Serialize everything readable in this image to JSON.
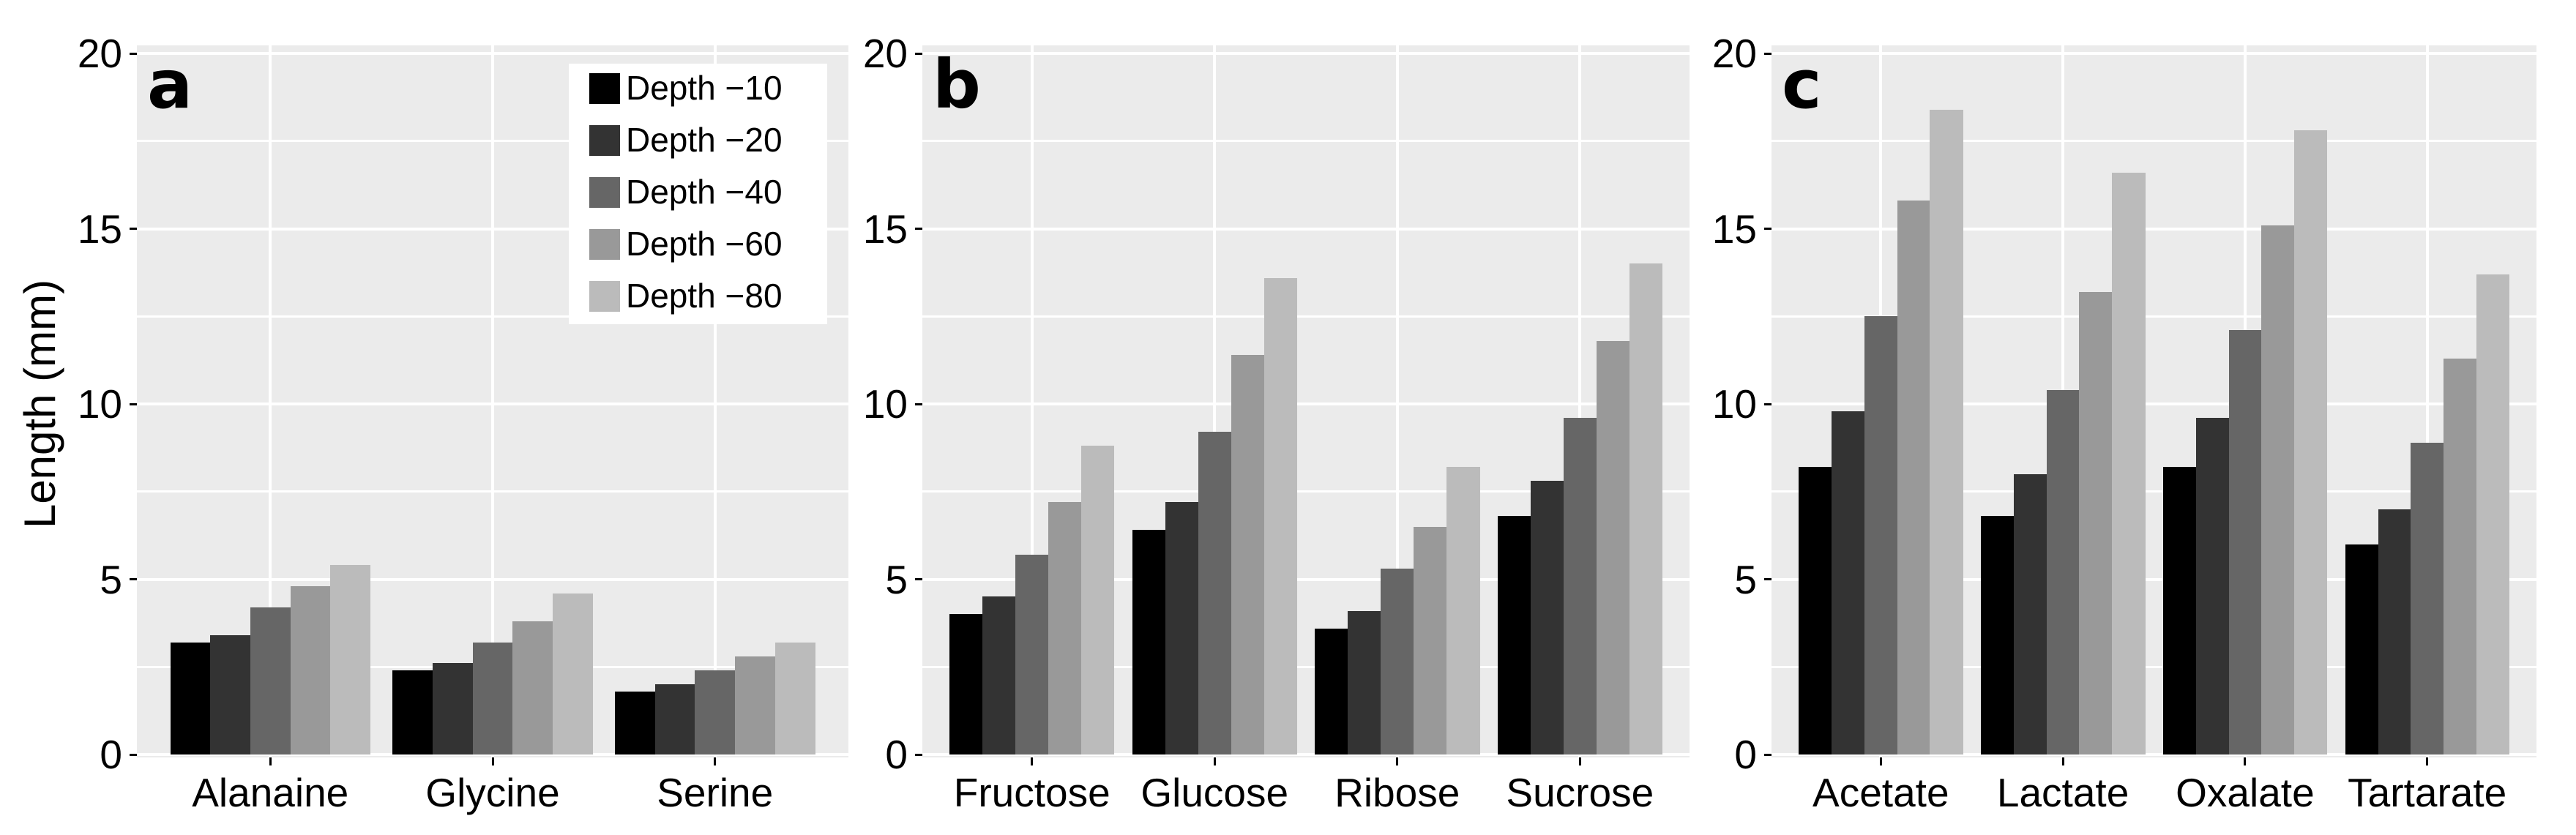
{
  "figure": {
    "y_axis_title": "Length (mm)",
    "background_color": "#ffffff",
    "panel_background_color": "#ebebeb",
    "gridline_color": "#ffffff",
    "text_color": "#000000",
    "y_ticks": [
      0,
      5,
      10,
      15,
      20
    ],
    "legend": {
      "items": [
        {
          "label": "Depth −10",
          "color": "#000000"
        },
        {
          "label": "Depth −20",
          "color": "#333333"
        },
        {
          "label": "Depth −40",
          "color": "#666666"
        },
        {
          "label": "Depth −60",
          "color": "#999999"
        },
        {
          "label": "Depth −80",
          "color": "#bbbbbb"
        }
      ]
    }
  },
  "chart_data": [
    {
      "type": "bar",
      "panel_label": "a",
      "title": "",
      "xlabel": "",
      "ylabel": "Length (mm)",
      "ylim": [
        0,
        20
      ],
      "yticks": [
        0,
        5,
        10,
        15,
        20
      ],
      "grid": "on",
      "legend_position": "top-right-inside",
      "categories": [
        "Alanaine",
        "Glycine",
        "Serine"
      ],
      "series": [
        {
          "name": "Depth −10",
          "color": "#000000",
          "values": [
            3.2,
            2.4,
            1.8
          ]
        },
        {
          "name": "Depth −20",
          "color": "#333333",
          "values": [
            3.4,
            2.6,
            2.0
          ]
        },
        {
          "name": "Depth −40",
          "color": "#666666",
          "values": [
            4.2,
            3.2,
            2.4
          ]
        },
        {
          "name": "Depth −60",
          "color": "#999999",
          "values": [
            4.8,
            3.8,
            2.8
          ]
        },
        {
          "name": "Depth −80",
          "color": "#bbbbbb",
          "values": [
            5.4,
            4.6,
            3.2
          ]
        }
      ]
    },
    {
      "type": "bar",
      "panel_label": "b",
      "title": "",
      "xlabel": "",
      "ylabel": "Length (mm)",
      "ylim": [
        0,
        20
      ],
      "yticks": [
        0,
        5,
        10,
        15,
        20
      ],
      "grid": "on",
      "legend_position": "none",
      "categories": [
        "Fructose",
        "Glucose",
        "Ribose",
        "Sucrose"
      ],
      "series": [
        {
          "name": "Depth −10",
          "color": "#000000",
          "values": [
            4.0,
            6.4,
            3.6,
            6.8
          ]
        },
        {
          "name": "Depth −20",
          "color": "#333333",
          "values": [
            4.5,
            7.2,
            4.1,
            7.8
          ]
        },
        {
          "name": "Depth −40",
          "color": "#666666",
          "values": [
            5.7,
            9.2,
            5.3,
            9.6
          ]
        },
        {
          "name": "Depth −60",
          "color": "#999999",
          "values": [
            7.2,
            11.4,
            6.5,
            11.8
          ]
        },
        {
          "name": "Depth −80",
          "color": "#bbbbbb",
          "values": [
            8.8,
            13.6,
            8.2,
            14.0
          ]
        }
      ]
    },
    {
      "type": "bar",
      "panel_label": "c",
      "title": "",
      "xlabel": "",
      "ylabel": "Length (mm)",
      "ylim": [
        0,
        20
      ],
      "yticks": [
        0,
        5,
        10,
        15,
        20
      ],
      "grid": "on",
      "legend_position": "none",
      "categories": [
        "Acetate",
        "Lactate",
        "Oxalate",
        "Tartarate"
      ],
      "series": [
        {
          "name": "Depth −10",
          "color": "#000000",
          "values": [
            8.2,
            6.8,
            8.2,
            6.0
          ]
        },
        {
          "name": "Depth −20",
          "color": "#333333",
          "values": [
            9.8,
            8.0,
            9.6,
            7.0
          ]
        },
        {
          "name": "Depth −40",
          "color": "#666666",
          "values": [
            12.5,
            10.4,
            12.1,
            8.9
          ]
        },
        {
          "name": "Depth −60",
          "color": "#999999",
          "values": [
            15.8,
            13.2,
            15.1,
            11.3
          ]
        },
        {
          "name": "Depth −80",
          "color": "#bbbbbb",
          "values": [
            18.4,
            16.6,
            17.8,
            13.7
          ]
        }
      ]
    }
  ]
}
